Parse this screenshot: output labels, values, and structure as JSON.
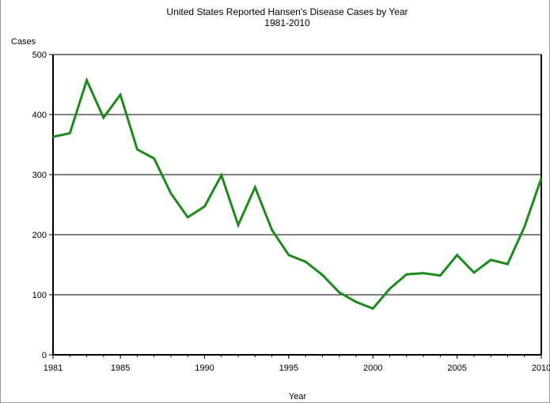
{
  "chart_data": {
    "type": "line",
    "title": "United States Reported Hansen's Disease Cases by Year",
    "subtitle": "1981-2010",
    "xlabel": "Year",
    "ylabel": "Cases",
    "xlim": [
      1981,
      2010
    ],
    "ylim": [
      0,
      500
    ],
    "x_ticks": [
      "1981",
      "1985",
      "1990",
      "1995",
      "2000",
      "2005",
      "2010"
    ],
    "y_ticks": [
      "0",
      "100",
      "200",
      "300",
      "400",
      "500"
    ],
    "grid": "horizontal",
    "colors": {
      "line": "#1e8a1e",
      "grid": "#000000",
      "axis": "#000000"
    },
    "series": [
      {
        "x": [
          1981,
          1982,
          1983,
          1984,
          1985,
          1986,
          1987,
          1988,
          1989,
          1990,
          1991,
          1992,
          1993,
          1994,
          1995,
          1996,
          1997,
          1998,
          1999,
          2000,
          2001,
          2002,
          2003,
          2004,
          2005,
          2006,
          2007,
          2008,
          2009,
          2010
        ],
        "values": [
          363,
          369,
          457,
          395,
          433,
          342,
          327,
          269,
          229,
          247,
          299,
          216,
          279,
          208,
          166,
          155,
          133,
          104,
          88,
          77,
          110,
          134,
          136,
          132,
          166,
          137,
          158,
          151,
          213,
          294
        ]
      }
    ]
  }
}
